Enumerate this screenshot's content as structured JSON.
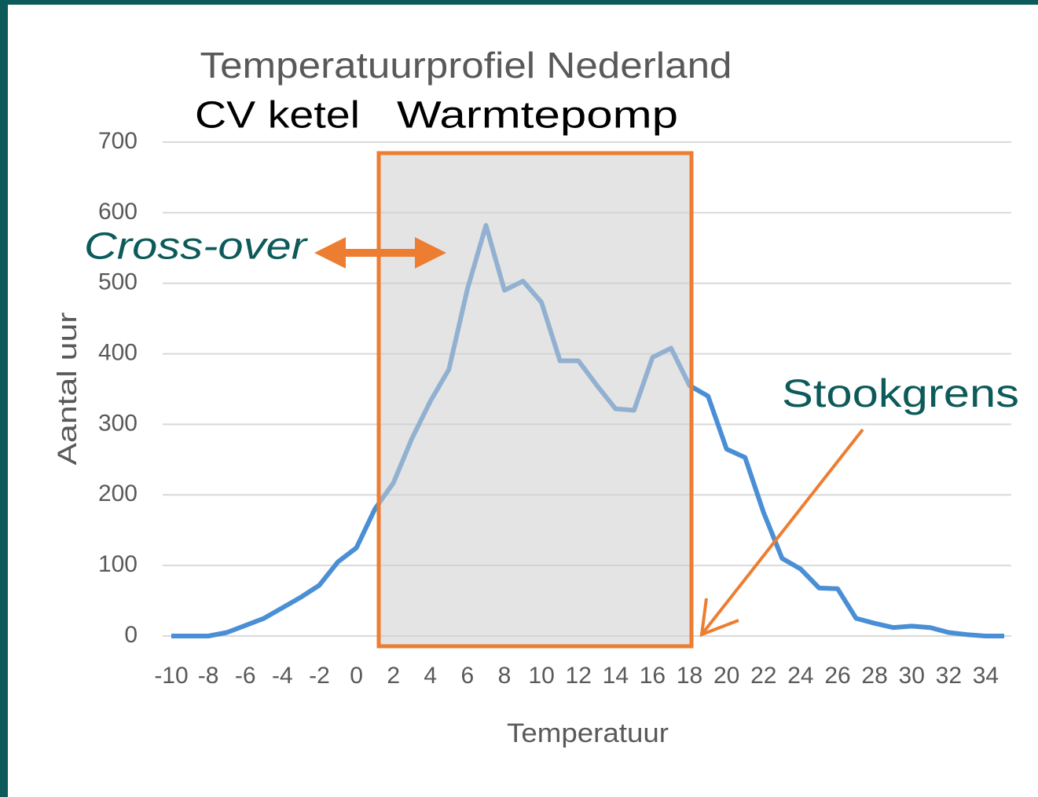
{
  "chart_data": {
    "type": "line",
    "title": "Temperatuurprofiel Nederland",
    "x_label": "Temperatuur",
    "y_label": "Aantal uur",
    "annotations": {
      "left_zone": "CV ketel",
      "right_zone": "Warmtepomp",
      "crossover": "Cross-over",
      "limit": "Stookgrens"
    },
    "categories": [
      "-10",
      null,
      "-8",
      null,
      "-6",
      null,
      "-4",
      null,
      "-2",
      null,
      "0",
      null,
      "2",
      null,
      "4",
      null,
      "6",
      null,
      "8",
      null,
      "10",
      null,
      "12",
      null,
      "14",
      null,
      "16",
      null,
      "18",
      null,
      "20",
      null,
      "22",
      null,
      "24",
      null,
      "26",
      null,
      "28",
      null,
      "30",
      null,
      "32",
      null,
      "34",
      null
    ],
    "series": [
      {
        "name": "Aantal uur",
        "color": "#4a8fd6",
        "values": [
          0,
          0,
          0,
          5,
          15,
          25,
          40,
          55,
          72,
          105,
          125,
          180,
          217,
          280,
          333,
          378,
          492,
          582,
          490,
          503,
          473,
          390,
          390,
          355,
          322,
          320,
          395,
          408,
          355,
          340,
          265,
          253,
          175,
          110,
          95,
          68,
          67,
          25,
          18,
          12,
          14,
          12,
          5,
          2,
          0,
          0
        ]
      }
    ],
    "ylim": [
      0,
      700
    ],
    "yticks": [
      0,
      100,
      200,
      300,
      400,
      500,
      600,
      700
    ],
    "grid": true
  }
}
